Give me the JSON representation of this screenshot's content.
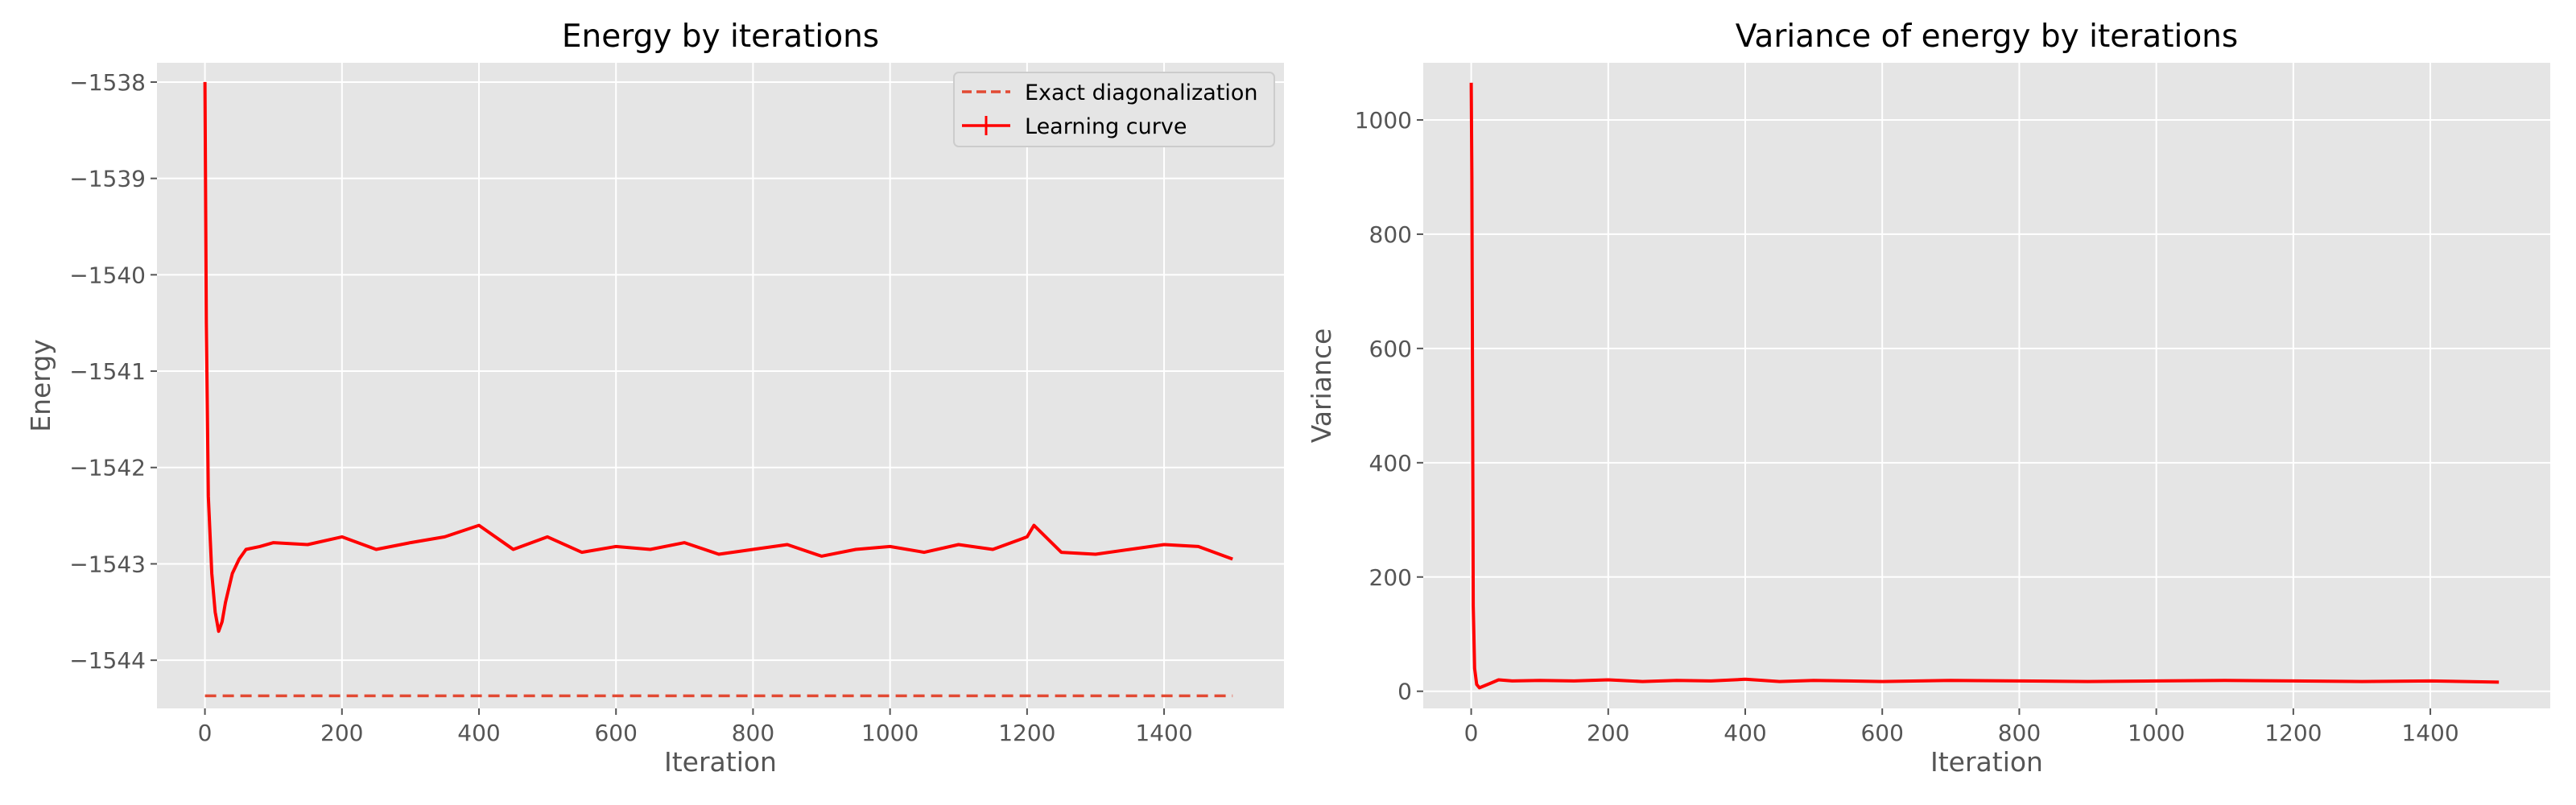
{
  "figure": {
    "background": "#ffffff",
    "axes_background": "#e5e5e5",
    "grid_color": "#ffffff",
    "tick_label_color": "#555555"
  },
  "chart_data": [
    {
      "type": "line",
      "title": "Energy by iterations",
      "xlabel": "Iteration",
      "ylabel": "Energy",
      "xlim": [
        -70,
        1575
      ],
      "ylim": [
        -1544.5,
        -1537.8
      ],
      "xticks": [
        0,
        200,
        400,
        600,
        800,
        1000,
        1200,
        1400
      ],
      "xtick_labels": [
        "0",
        "200",
        "400",
        "600",
        "800",
        "1000",
        "1200",
        "1400"
      ],
      "yticks": [
        -1544,
        -1543,
        -1542,
        -1541,
        -1540,
        -1539,
        -1538
      ],
      "ytick_labels": [
        "−1544",
        "−1543",
        "−1542",
        "−1541",
        "−1540",
        "−1539",
        "−1538"
      ],
      "grid": true,
      "legend": {
        "placement": "top-right",
        "entries": [
          "Exact diagonalization",
          "Learning curve"
        ]
      },
      "series": [
        {
          "name": "Exact diagonalization",
          "style": "dashed",
          "color": "#e24a33",
          "x": [
            0,
            1500
          ],
          "y": [
            -1544.37,
            -1544.37
          ]
        },
        {
          "name": "Learning curve",
          "style": "solid",
          "color": "#ff0000",
          "x": [
            0,
            2,
            5,
            10,
            15,
            20,
            25,
            30,
            40,
            50,
            60,
            80,
            100,
            150,
            200,
            250,
            300,
            350,
            400,
            450,
            500,
            550,
            600,
            650,
            700,
            750,
            800,
            850,
            900,
            950,
            1000,
            1050,
            1100,
            1150,
            1200,
            1210,
            1250,
            1300,
            1350,
            1400,
            1450,
            1500
          ],
          "y": [
            -1538.0,
            -1540.5,
            -1542.3,
            -1543.1,
            -1543.5,
            -1543.7,
            -1543.6,
            -1543.4,
            -1543.1,
            -1542.95,
            -1542.85,
            -1542.82,
            -1542.78,
            -1542.8,
            -1542.72,
            -1542.85,
            -1542.78,
            -1542.72,
            -1542.6,
            -1542.85,
            -1542.72,
            -1542.88,
            -1542.82,
            -1542.85,
            -1542.78,
            -1542.9,
            -1542.85,
            -1542.8,
            -1542.92,
            -1542.85,
            -1542.82,
            -1542.88,
            -1542.8,
            -1542.85,
            -1542.72,
            -1542.6,
            -1542.88,
            -1542.9,
            -1542.85,
            -1542.8,
            -1542.82,
            -1542.95
          ]
        }
      ]
    },
    {
      "type": "line",
      "title": "Variance of energy by iterations",
      "xlabel": "Iteration",
      "ylabel": "Variance",
      "xlim": [
        -70,
        1575
      ],
      "ylim": [
        -30,
        1100
      ],
      "xticks": [
        0,
        200,
        400,
        600,
        800,
        1000,
        1200,
        1400
      ],
      "xtick_labels": [
        "0",
        "200",
        "400",
        "600",
        "800",
        "1000",
        "1200",
        "1400"
      ],
      "yticks": [
        0,
        200,
        400,
        600,
        800,
        1000
      ],
      "ytick_labels": [
        "0",
        "200",
        "400",
        "600",
        "800",
        "1000"
      ],
      "grid": true,
      "series": [
        {
          "style": "solid",
          "color": "#ff0000",
          "x": [
            0,
            1,
            2,
            3,
            5,
            8,
            12,
            20,
            30,
            40,
            60,
            100,
            150,
            200,
            250,
            300,
            350,
            400,
            450,
            500,
            550,
            600,
            700,
            800,
            900,
            1000,
            1100,
            1200,
            1300,
            1400,
            1500
          ],
          "y": [
            1065,
            900,
            500,
            150,
            40,
            12,
            6,
            10,
            15,
            20,
            18,
            19,
            18,
            20,
            17,
            19,
            18,
            21,
            17,
            19,
            18,
            17,
            19,
            18,
            17,
            18,
            19,
            18,
            17,
            18,
            16
          ]
        }
      ]
    }
  ]
}
